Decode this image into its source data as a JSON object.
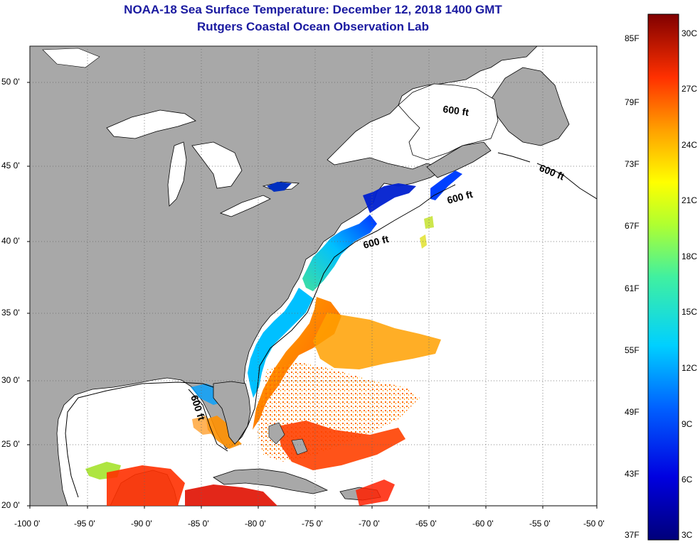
{
  "header": {
    "title": "NOAA-18 Sea Surface Temperature:  December 12, 2018 1400 GMT",
    "subtitle": "Rutgers Coastal Ocean Observation Lab"
  },
  "axes": {
    "lat_labels": [
      "50 0'",
      "45 0'",
      "40 0'",
      "35 0'",
      "30 0'",
      "25 0'",
      "20 0'"
    ],
    "lon_labels": [
      "-100 0'",
      "-95 0'",
      "-90 0'",
      "-85 0'",
      "-80 0'",
      "-75 0'",
      "-70 0'",
      "-65 0'",
      "-60 0'",
      "-55 0'",
      "-50 0'"
    ]
  },
  "isobath_labels": [
    "600 ft",
    "600 ft",
    "600 ft",
    "600 ft",
    "600 ft"
  ],
  "colorbar": {
    "fahrenheit": [
      "85F",
      "79F",
      "73F",
      "67F",
      "61F",
      "55F",
      "49F",
      "43F",
      "37F"
    ],
    "celsius": [
      "30C",
      "27C",
      "24C",
      "21C",
      "18C",
      "15C",
      "12C",
      "9C",
      "6C",
      "3C"
    ]
  },
  "colors": {
    "land": "#a8a8a8",
    "title": "#1a1aa0"
  }
}
